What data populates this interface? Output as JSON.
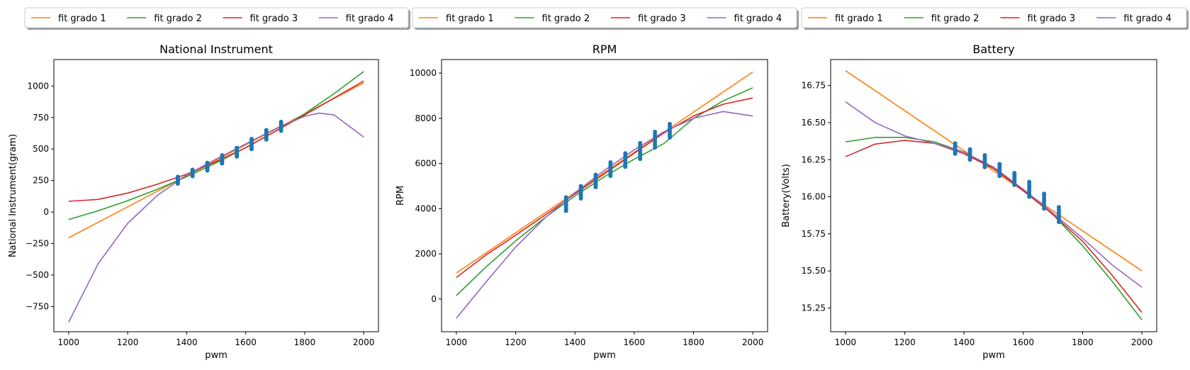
{
  "colors": {
    "fit1": "#ff7f0e",
    "fit2": "#2ca02c",
    "fit3": "#d62728",
    "fit4": "#9467bd",
    "points": "#1f77b4"
  },
  "chart_data": [
    {
      "type": "line",
      "title": "National Instrument",
      "xlabel": "pwm",
      "ylabel": "National Instrument(gram)",
      "xlim": [
        950,
        2050
      ],
      "ylim": [
        -950,
        1210
      ],
      "xticks": [
        1000,
        1200,
        1400,
        1600,
        1800,
        2000
      ],
      "yticks": [
        -750,
        -500,
        -250,
        0,
        250,
        500,
        750,
        1000
      ],
      "legend": "top (above plot), 4 columns",
      "series": [
        {
          "name": "fit grado 1",
          "color": "#ff7f0e",
          "x": [
            1000,
            1100,
            1200,
            1300,
            1400,
            1500,
            1600,
            1700,
            1800,
            1900,
            2000
          ],
          "y": [
            -205,
            -82,
            41,
            164,
            287,
            410,
            533,
            656,
            779,
            902,
            1025
          ]
        },
        {
          "name": "fit grado 2",
          "color": "#2ca02c",
          "x": [
            1000,
            1100,
            1200,
            1300,
            1400,
            1500,
            1600,
            1700,
            1800,
            1900,
            2000
          ],
          "y": [
            -60,
            10,
            90,
            180,
            280,
            390,
            510,
            640,
            780,
            940,
            1115
          ]
        },
        {
          "name": "fit grado 3",
          "color": "#d62728",
          "x": [
            1000,
            1100,
            1200,
            1300,
            1400,
            1500,
            1600,
            1700,
            1800,
            1900,
            2000
          ],
          "y": [
            85,
            100,
            150,
            220,
            300,
            400,
            510,
            640,
            770,
            905,
            1040
          ]
        },
        {
          "name": "fit grado 4",
          "color": "#9467bd",
          "x": [
            1000,
            1100,
            1200,
            1300,
            1400,
            1500,
            1600,
            1700,
            1800,
            1850,
            1900,
            2000
          ],
          "y": [
            -875,
            -410,
            -90,
            130,
            295,
            420,
            540,
            660,
            760,
            785,
            770,
            595
          ]
        }
      ],
      "points": {
        "x": [
          1370,
          1420,
          1470,
          1520,
          1570,
          1620,
          1670,
          1720
        ],
        "ymin": [
          225,
          285,
          330,
          385,
          440,
          500,
          575,
          645
        ],
        "ymax": [
          280,
          335,
          390,
          450,
          510,
          580,
          650,
          715
        ]
      }
    },
    {
      "type": "line",
      "title": "RPM",
      "xlabel": "pwm",
      "ylabel": "RPM",
      "xlim": [
        950,
        2050
      ],
      "ylim": [
        -1450,
        10600
      ],
      "xticks": [
        1000,
        1200,
        1400,
        1600,
        1800,
        2000
      ],
      "yticks": [
        0,
        2000,
        4000,
        6000,
        8000,
        10000
      ],
      "legend": "top (above plot), 4 columns",
      "series": [
        {
          "name": "fit grado 1",
          "color": "#ff7f0e",
          "x": [
            1000,
            1100,
            1200,
            1300,
            1400,
            1500,
            1600,
            1700,
            1800,
            1900,
            2000
          ],
          "y": [
            1150,
            2040,
            2930,
            3820,
            4710,
            5600,
            6490,
            7380,
            8270,
            9160,
            10050
          ]
        },
        {
          "name": "fit grado 2",
          "color": "#2ca02c",
          "x": [
            1000,
            1100,
            1200,
            1300,
            1400,
            1500,
            1600,
            1700,
            1800,
            1900,
            2000
          ],
          "y": [
            150,
            1420,
            2570,
            3610,
            4560,
            5420,
            6190,
            6880,
            7990,
            8770,
            9350
          ]
        },
        {
          "name": "fit grado 3",
          "color": "#d62728",
          "x": [
            1000,
            1100,
            1200,
            1300,
            1400,
            1500,
            1600,
            1700,
            1800,
            1900,
            2000
          ],
          "y": [
            950,
            1950,
            2820,
            3720,
            4650,
            5550,
            6450,
            7350,
            8100,
            8620,
            8900
          ]
        },
        {
          "name": "fit grado 4",
          "color": "#9467bd",
          "x": [
            1000,
            1100,
            1200,
            1300,
            1400,
            1500,
            1600,
            1700,
            1800,
            1900,
            2000
          ],
          "y": [
            -850,
            750,
            2300,
            3600,
            4700,
            5700,
            6600,
            7400,
            8000,
            8300,
            8100
          ]
        }
      ],
      "points": {
        "x": [
          1370,
          1420,
          1470,
          1520,
          1570,
          1620,
          1670,
          1720
        ],
        "ymin": [
          3900,
          4450,
          4950,
          5450,
          5850,
          6200,
          6700,
          7150
        ],
        "ymax": [
          4500,
          5000,
          5500,
          6050,
          6450,
          6900,
          7400,
          7750
        ]
      }
    },
    {
      "type": "line",
      "title": "Battery",
      "xlabel": "pwm",
      "ylabel": "Battery(Volts)",
      "xlim": [
        950,
        2050
      ],
      "ylim": [
        15.09,
        16.925
      ],
      "xticks": [
        1000,
        1200,
        1400,
        1600,
        1800,
        2000
      ],
      "yticks": [
        15.25,
        15.5,
        15.75,
        16.0,
        16.25,
        16.5,
        16.75
      ],
      "legend": "top (above plot), 4 columns",
      "series": [
        {
          "name": "fit grado 1",
          "color": "#ff7f0e",
          "x": [
            1000,
            1100,
            1200,
            1300,
            1400,
            1500,
            1600,
            1700,
            1800,
            1900,
            2000
          ],
          "y": [
            16.85,
            16.715,
            16.58,
            16.445,
            16.31,
            16.175,
            16.04,
            15.905,
            15.77,
            15.635,
            15.5
          ]
        },
        {
          "name": "fit grado 2",
          "color": "#2ca02c",
          "x": [
            1000,
            1100,
            1200,
            1300,
            1400,
            1500,
            1600,
            1700,
            1800,
            1900,
            2000
          ],
          "y": [
            16.37,
            16.4,
            16.4,
            16.37,
            16.3,
            16.19,
            16.05,
            15.88,
            15.67,
            15.43,
            15.17
          ]
        },
        {
          "name": "fit grado 3",
          "color": "#d62728",
          "x": [
            1000,
            1100,
            1200,
            1300,
            1400,
            1500,
            1600,
            1700,
            1800,
            1900,
            2000
          ],
          "y": [
            16.27,
            16.355,
            16.38,
            16.36,
            16.29,
            16.19,
            16.04,
            15.88,
            15.7,
            15.47,
            15.22
          ]
        },
        {
          "name": "fit grado 4",
          "color": "#9467bd",
          "x": [
            1000,
            1100,
            1200,
            1300,
            1400,
            1500,
            1600,
            1700,
            1800,
            1900,
            2000
          ],
          "y": [
            16.64,
            16.5,
            16.41,
            16.36,
            16.3,
            16.2,
            16.05,
            15.89,
            15.72,
            15.54,
            15.39
          ]
        }
      ],
      "points": {
        "x": [
          1370,
          1420,
          1470,
          1520,
          1570,
          1620,
          1670,
          1720
        ],
        "ymin": [
          16.29,
          16.25,
          16.2,
          16.14,
          16.08,
          16.0,
          15.92,
          15.83
        ],
        "ymax": [
          16.36,
          16.32,
          16.28,
          16.22,
          16.16,
          16.1,
          16.02,
          15.93
        ]
      }
    }
  ]
}
